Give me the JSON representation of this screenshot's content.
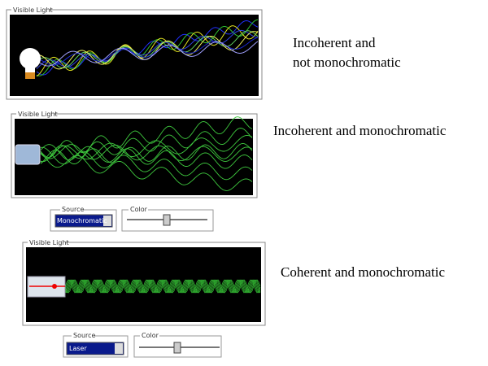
{
  "panels": [
    {
      "group_label": "Visible Light",
      "caption": [
        "Incoherent and",
        "not monochromatic"
      ]
    },
    {
      "group_label": "Visible Light",
      "caption": [
        "Incoherent and monochromatic"
      ],
      "controls": {
        "source_label": "Source",
        "source_value": "Monochromatic",
        "color_label": "Color"
      }
    },
    {
      "group_label": "Visible Light",
      "caption": [
        "Coherent and monochromatic"
      ],
      "controls": {
        "source_label": "Source",
        "source_value": "Laser",
        "color_label": "Color"
      }
    }
  ]
}
